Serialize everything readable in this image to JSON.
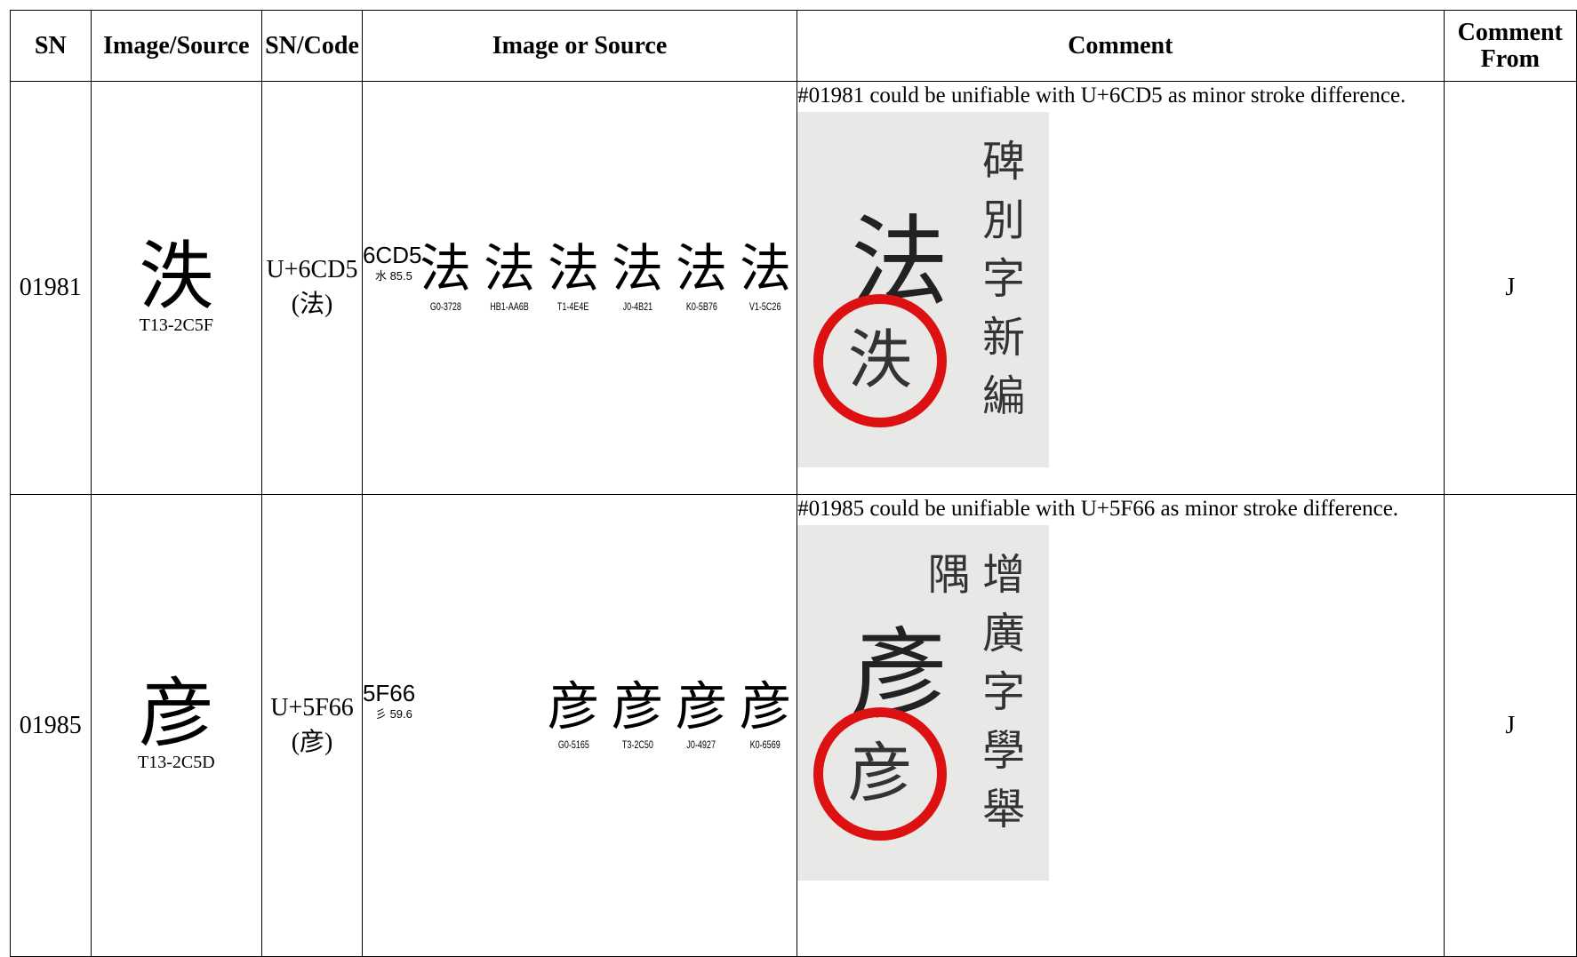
{
  "table": {
    "headers": [
      "SN",
      "Image/Source",
      "SN/Code",
      "Image or Source",
      "Comment",
      "Comment From"
    ],
    "rows": [
      {
        "sn": "01981",
        "image_char": "泆",
        "image_source": "T13-2C5F",
        "code": "U+6CD5(法)",
        "glyph_code": "6CD5",
        "radical": "水 85.5",
        "glyphs": [
          {
            "char": "法",
            "source": "G0-3728"
          },
          {
            "char": "法",
            "source": "HB1-AA6B"
          },
          {
            "char": "法",
            "source": "T1-4E4E"
          },
          {
            "char": "法",
            "source": "J0-4B21"
          },
          {
            "char": "法",
            "source": "K0-5B76"
          },
          {
            "char": "法",
            "source": "V1-5C26"
          }
        ],
        "comment": "#01981 could be unifiable with U+6CD5 as minor stroke difference.",
        "comment_image": {
          "main": "法",
          "variant": "泆",
          "caption": "碑別字新編"
        },
        "comment_from": "J"
      },
      {
        "sn": "01985",
        "image_char": "彦",
        "image_source": "T13-2C5D",
        "code": "U+5F66(彦)",
        "glyph_code": "5F66",
        "radical": "彡 59.6",
        "glyphs": [
          {
            "char": "彦",
            "source": "G0-5165"
          },
          {
            "char": "彦",
            "source": "T3-2C50"
          },
          {
            "char": "彦",
            "source": "J0-4927"
          },
          {
            "char": "彦",
            "source": "K0-6569"
          }
        ],
        "comment": "#01985 could be unifiable with U+5F66 as minor stroke difference.",
        "comment_image": {
          "main": "彥",
          "variant": "彦",
          "caption": "增廣字學舉隅"
        },
        "comment_from": "J"
      }
    ]
  }
}
